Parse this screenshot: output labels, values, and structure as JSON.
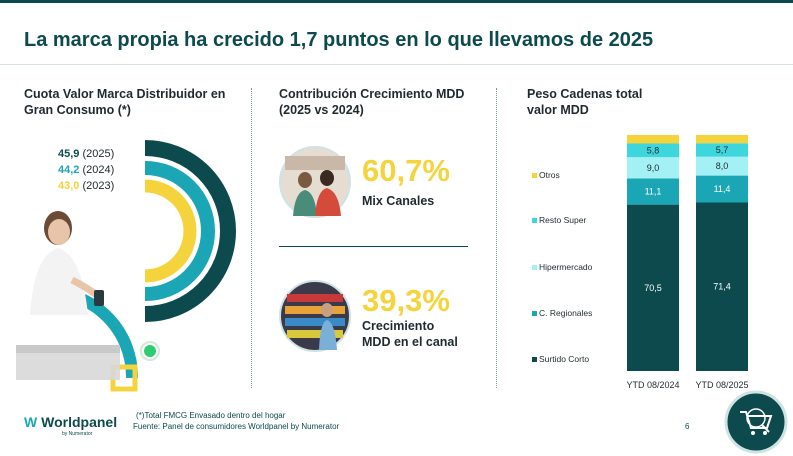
{
  "header": {
    "title": "La marca propia ha crecido 1,7 puntos en lo que llevamos de 2025"
  },
  "columns": {
    "left_title": "Cuota Valor Marca Distribuidor en Gran Consumo (*)",
    "mid_title": "Contribución Crecimiento MDD (2025 vs 2024)",
    "right_title": "Peso Cadenas total valor MDD"
  },
  "share": {
    "items": [
      {
        "value": "45,9",
        "year": "(2025)",
        "color": "#0c4a4d"
      },
      {
        "value": "44,2",
        "year": "(2024)",
        "color": "#1aa6b4"
      },
      {
        "value": "43,0",
        "year": "(2023)",
        "color": "#f5d33c"
      }
    ]
  },
  "contribution": {
    "pct1": "60,7%",
    "label1": "Mix Canales",
    "pct2": "39,3%",
    "label2a": "Crecimiento",
    "label2b": "MDD en el canal"
  },
  "colors": {
    "dark_teal": "#0c4a4d",
    "teal": "#1aa6b4",
    "cyan": "#3dd6dd",
    "light_cyan": "#a3f0f5",
    "yellow": "#f5d33c"
  },
  "chart_data": {
    "type": "bar",
    "stacked": true,
    "categories": [
      "YTD 08/2024",
      "YTD 08/2025"
    ],
    "series": [
      {
        "name": "Surtido Corto",
        "values": [
          70.5,
          71.4
        ],
        "labels": [
          "70,5",
          "71,4"
        ],
        "color": "#0c4a4d"
      },
      {
        "name": "C. Regionales",
        "values": [
          11.1,
          11.4
        ],
        "labels": [
          "11,1",
          "11,4"
        ],
        "color": "#1aa6b4"
      },
      {
        "name": "Hipermercado",
        "values": [
          9.0,
          8.0
        ],
        "labels": [
          "9,0",
          "8,0"
        ],
        "color": "#a3f0f5"
      },
      {
        "name": "Resto Super",
        "values": [
          5.8,
          5.7
        ],
        "labels": [
          "5,8",
          "5,7"
        ],
        "color": "#3dd6dd"
      },
      {
        "name": "Otros",
        "values": [
          3.6,
          3.5
        ],
        "labels": [
          "",
          ""
        ],
        "color": "#f5d33c"
      }
    ],
    "ylim": [
      0,
      100
    ],
    "legend_position": "left"
  },
  "footer": {
    "note": "(*)Total FMCG Envasado dentro del hogar",
    "source": "Fuente: Panel de consumidores Worldpanel by Numerator",
    "page": "6",
    "logo_name": "Worldpanel",
    "logo_sub": "by Numerator"
  }
}
